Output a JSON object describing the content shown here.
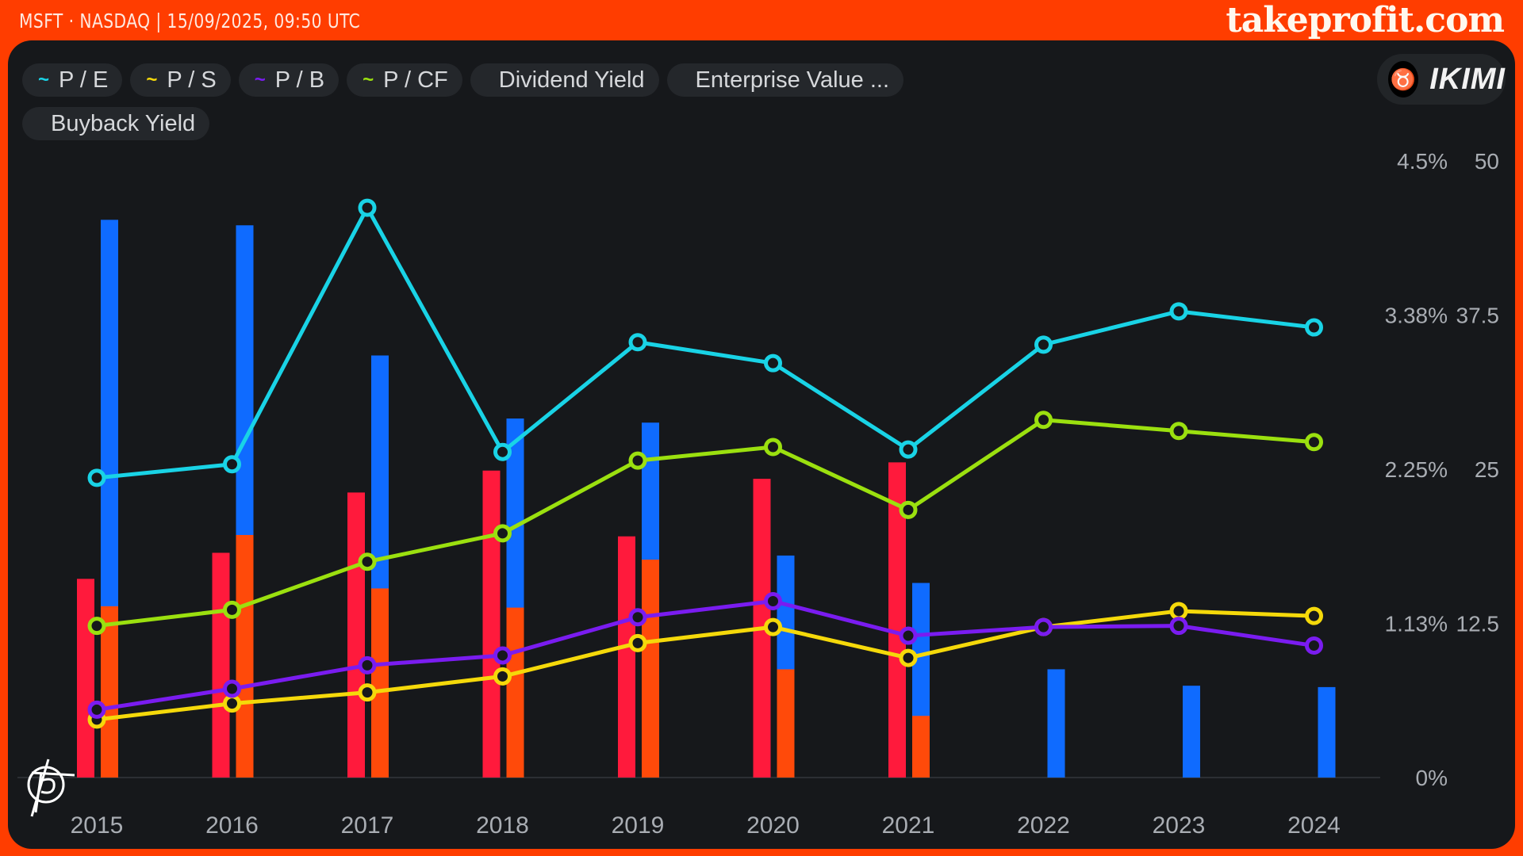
{
  "header": {
    "ticker_line": "MSFT · NASDAQ | 15/09/2025, 09:50 UTC",
    "site": "takeprofit.com"
  },
  "brand": {
    "name": "IKIMI"
  },
  "legend": [
    {
      "label": "P / E",
      "icon": "line-icon",
      "color": "#19d3e6"
    },
    {
      "label": "P / S",
      "icon": "line-icon",
      "color": "#f5d90a"
    },
    {
      "label": "P / B",
      "icon": "line-icon",
      "color": "#7a1cf0"
    },
    {
      "label": "P / CF",
      "icon": "line-icon",
      "color": "#9be00f"
    },
    {
      "label": "Dividend Yield",
      "icon": "bar-icon",
      "color": "#0f6bff"
    },
    {
      "label": "Enterprise Value ...",
      "icon": "bar-icon",
      "color": "#ff1a3c"
    },
    {
      "label": "Buyback Yield",
      "icon": "bar-icon",
      "color": "#ff4a0a"
    }
  ],
  "chart_data": {
    "type": "bar+line",
    "categories": [
      "2015",
      "2016",
      "2017",
      "2018",
      "2019",
      "2020",
      "2021",
      "2022",
      "2023",
      "2024"
    ],
    "left_axis": {
      "ticks": [
        "4.5%",
        "3.38%",
        "2.25%",
        "1.13%",
        "0%"
      ],
      "range": [
        0,
        4.5
      ]
    },
    "right_axis": {
      "ticks": [
        "50",
        "37.5",
        "25",
        "12.5"
      ],
      "range": [
        0,
        50
      ]
    },
    "bar_series": [
      {
        "name": "Dividend Yield",
        "axis": "left",
        "color": "#0f6bff",
        "values": [
          4.07,
          4.03,
          3.08,
          2.62,
          2.59,
          1.62,
          1.42,
          0.79,
          0.67,
          0.66
        ]
      },
      {
        "name": "Enterprise Value ...",
        "axis": "left",
        "color": "#ff1a3c",
        "values": [
          1.45,
          1.64,
          2.08,
          2.24,
          1.76,
          2.18,
          2.3,
          0,
          0,
          0
        ]
      },
      {
        "name": "Buyback Yield",
        "axis": "left",
        "color": "#ff4a0a",
        "values": [
          1.25,
          1.77,
          1.38,
          1.24,
          1.59,
          0.79,
          0.45,
          0,
          0,
          0
        ]
      }
    ],
    "line_series": [
      {
        "name": "P / CF",
        "axis": "right",
        "color": "#9be00f",
        "values": [
          12.3,
          13.6,
          17.5,
          19.8,
          25.7,
          26.8,
          21.7,
          29.0,
          28.1,
          27.2
        ]
      },
      {
        "name": "P / S",
        "axis": "right",
        "color": "#f5d90a",
        "values": [
          4.7,
          6.0,
          6.9,
          8.2,
          10.9,
          12.2,
          9.7,
          12.2,
          13.5,
          13.1
        ]
      },
      {
        "name": "P / B",
        "axis": "right",
        "color": "#7a1cf0",
        "values": [
          5.5,
          7.2,
          9.1,
          9.9,
          13.0,
          14.3,
          11.5,
          12.2,
          12.3,
          10.7
        ]
      },
      {
        "name": "P / E",
        "axis": "right",
        "color": "#19d3e6",
        "values": [
          24.3,
          25.4,
          46.2,
          26.4,
          35.3,
          33.6,
          26.6,
          35.1,
          37.8,
          36.5
        ]
      }
    ],
    "legend_position": "top-left",
    "grid": false
  }
}
